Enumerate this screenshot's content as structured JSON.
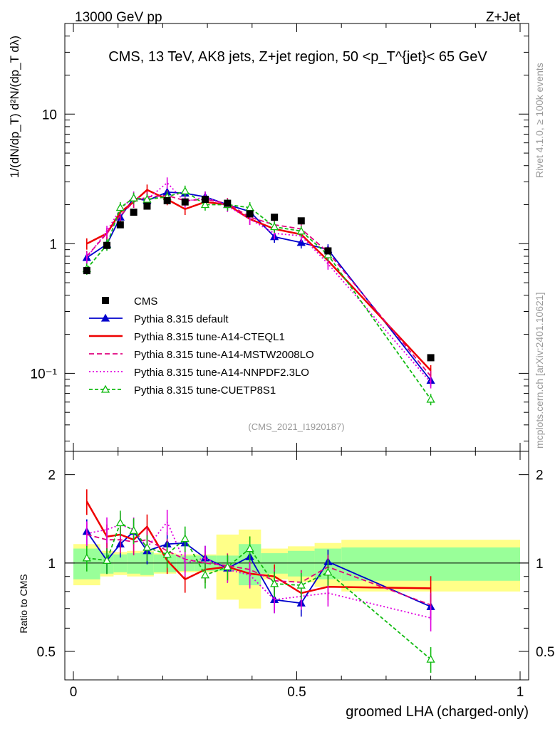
{
  "header": {
    "left": "13000 GeV pp",
    "right": "Z+Jet"
  },
  "chart_data": {
    "type": "line",
    "title": "CMS, 13 TeV, AK8 jets, Z+jet region, 50 <p_T^{jet}< 65 GeV",
    "analysis_tag": "(CMS_2021_I1920187)",
    "side_label_top": "Rivet 4.1.0, ≥ 100k events",
    "side_label_bottom": "mcplots.cern.ch [arXiv:2401.10621]",
    "xlabel": "groomed LHA (charged-only)",
    "ylabel_main": "1/(dN/dp_T) d²N/(dp_T dλ)",
    "ylabel_ratio": "Ratio to CMS",
    "x_range": [
      0,
      1
    ],
    "y_range_main": [
      0.025,
      50
    ],
    "y_scale_main": "log",
    "y_range_ratio": [
      0.4,
      2.4
    ],
    "y_scale_ratio": "log",
    "x_ticks": [
      "0",
      "0.5",
      "1"
    ],
    "y_ticks_main": [
      "10⁻¹",
      "1",
      "10"
    ],
    "y_ticks_ratio": [
      "0.5",
      "1",
      "2"
    ],
    "bins": [
      [
        0.0,
        0.06
      ],
      [
        0.06,
        0.09
      ],
      [
        0.09,
        0.12
      ],
      [
        0.12,
        0.15
      ],
      [
        0.15,
        0.18
      ],
      [
        0.18,
        0.23
      ],
      [
        0.23,
        0.27
      ],
      [
        0.27,
        0.32
      ],
      [
        0.32,
        0.37
      ],
      [
        0.37,
        0.42
      ],
      [
        0.42,
        0.48
      ],
      [
        0.48,
        0.54
      ],
      [
        0.54,
        0.6
      ],
      [
        0.6,
        1.0
      ]
    ],
    "x": [
      0.03,
      0.075,
      0.105,
      0.135,
      0.165,
      0.21,
      0.25,
      0.295,
      0.345,
      0.395,
      0.45,
      0.51,
      0.57,
      0.8
    ],
    "cms": {
      "name": "CMS",
      "values": [
        0.62,
        0.97,
        1.4,
        1.75,
        1.95,
        2.15,
        2.1,
        2.2,
        2.05,
        1.7,
        1.6,
        1.5,
        0.88,
        0.132
      ],
      "band_inner": [
        0.12,
        0.08,
        0.07,
        0.08,
        0.09,
        0.07,
        0.06,
        0.06,
        0.06,
        0.16,
        0.08,
        0.1,
        0.12,
        0.13
      ],
      "band_outer": [
        0.16,
        0.1,
        0.09,
        0.1,
        0.1,
        0.08,
        0.07,
        0.07,
        0.25,
        0.3,
        0.12,
        0.14,
        0.17,
        0.2
      ]
    },
    "series": [
      {
        "name": "Pythia 8.315 default",
        "color": "#0000cc",
        "dash": "",
        "marker": "triangle-filled",
        "values": [
          0.78,
          0.99,
          1.6,
          2.25,
          2.15,
          2.5,
          2.45,
          2.3,
          2.0,
          1.77,
          1.13,
          1.02,
          0.9,
          0.088
        ],
        "ratio": [
          1.28,
          1.02,
          1.16,
          1.28,
          1.1,
          1.16,
          1.17,
          1.04,
          0.96,
          1.05,
          0.75,
          0.73,
          1.01,
          0.71
        ]
      },
      {
        "name": "Pythia 8.315 tune-A14-CTEQL1",
        "color": "#ee0000",
        "dash": "",
        "marker": "none",
        "values": [
          1.0,
          1.2,
          1.75,
          2.1,
          2.6,
          2.2,
          1.85,
          2.1,
          2.0,
          1.55,
          1.3,
          1.18,
          0.74,
          0.105
        ],
        "ratio": [
          1.62,
          1.23,
          1.25,
          1.2,
          1.33,
          1.02,
          0.88,
          0.95,
          0.97,
          0.92,
          0.9,
          0.79,
          0.83,
          0.82
        ]
      },
      {
        "name": "Pythia 8.315 tune-A14-MSTW2008LO",
        "color": "#e0007f",
        "dash": "7,4",
        "marker": "none",
        "values": [
          0.8,
          1.2,
          1.65,
          2.1,
          2.3,
          2.35,
          2.15,
          2.2,
          2.05,
          1.6,
          1.4,
          1.3,
          0.86,
          0.095
        ],
        "ratio": [
          1.25,
          1.2,
          1.2,
          1.18,
          1.2,
          1.1,
          1.03,
          1.0,
          0.98,
          0.95,
          0.87,
          0.86,
          0.97,
          0.72
        ]
      },
      {
        "name": "Pythia 8.315 tune-A14-NNPDF2.3LO",
        "color": "#e000e0",
        "dash": "2,3",
        "marker": "none",
        "values": [
          0.78,
          1.25,
          1.85,
          2.3,
          2.2,
          2.95,
          2.1,
          2.3,
          1.95,
          1.55,
          1.2,
          1.15,
          0.7,
          0.085
        ],
        "ratio": [
          1.26,
          1.3,
          1.35,
          1.3,
          1.13,
          1.38,
          1.0,
          1.04,
          0.95,
          0.91,
          0.75,
          0.77,
          0.79,
          0.65
        ]
      },
      {
        "name": "Pythia 8.315 tune-CUETP8S1",
        "color": "#11bb11",
        "dash": "5,3",
        "marker": "triangle-open",
        "values": [
          0.64,
          0.98,
          1.9,
          2.25,
          2.2,
          2.3,
          2.55,
          2.0,
          2.0,
          1.9,
          1.35,
          1.25,
          0.82,
          0.063
        ],
        "ratio": [
          1.04,
          1.02,
          1.37,
          1.29,
          1.13,
          1.07,
          1.21,
          0.91,
          0.97,
          1.12,
          0.85,
          0.84,
          0.93,
          0.47
        ]
      }
    ]
  }
}
